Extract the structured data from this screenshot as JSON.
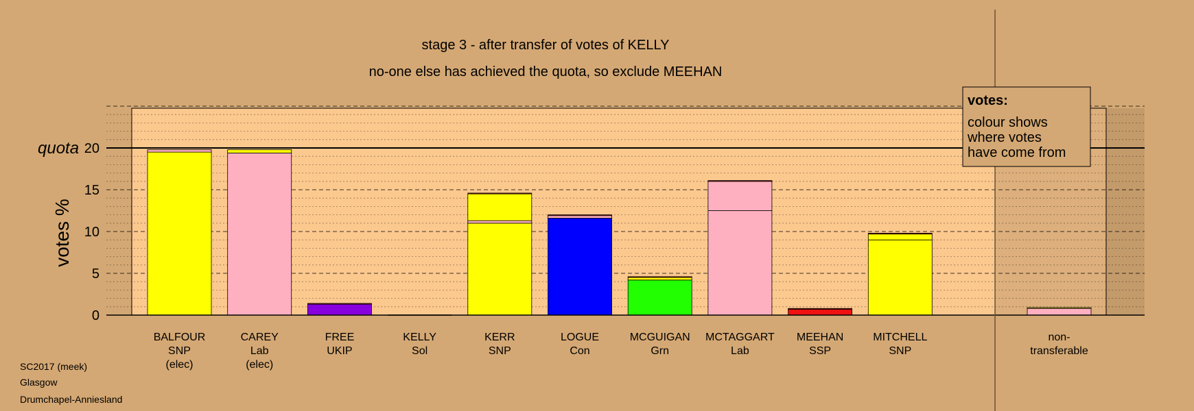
{
  "chart_data": {
    "type": "bar",
    "stacked": true,
    "title": "stage 3 - after transfer of votes of KELLY",
    "subtitle": "no-one else has achieved the quota, so exclude MEEHAN",
    "ylabel": "votes %",
    "quota_label": "quota",
    "quota": 20,
    "ylim": [
      0,
      25
    ],
    "yticks": [
      0,
      5,
      10,
      15,
      20
    ],
    "colors": {
      "snp": "#ffff00",
      "lab": "#ffb0c0",
      "ukip": "#8800dd",
      "sol": "#b22222",
      "con": "#0000ff",
      "grn": "#22ff00",
      "ssp": "#ee1111",
      "plot_bg": "#fbc88e",
      "page_bg": "#d4a874"
    },
    "candidates": [
      {
        "name": "BALFOUR",
        "party": "SNP",
        "status": "(elec)",
        "segments": [
          {
            "party": "snp",
            "value": 19.5
          },
          {
            "party": "lab",
            "value": 0.3
          }
        ]
      },
      {
        "name": "CAREY",
        "party": "Lab",
        "status": "(elec)",
        "segments": [
          {
            "party": "lab",
            "value": 19.4
          },
          {
            "party": "snp",
            "value": 0.4
          }
        ]
      },
      {
        "name": "FREE",
        "party": "UKIP",
        "status": "",
        "segments": [
          {
            "party": "ukip",
            "value": 1.3
          },
          {
            "party": "sol",
            "value": 0.1
          }
        ]
      },
      {
        "name": "KELLY",
        "party": "Sol",
        "status": "",
        "segments": []
      },
      {
        "name": "KERR",
        "party": "SNP",
        "status": "",
        "segments": [
          {
            "party": "snp",
            "value": 11.0
          },
          {
            "party": "lab",
            "value": 0.3
          },
          {
            "party": "snp",
            "value": 3.2
          },
          {
            "party": "sol",
            "value": 0.1
          }
        ]
      },
      {
        "name": "LOGUE",
        "party": "Con",
        "status": "",
        "segments": [
          {
            "party": "con",
            "value": 11.6
          },
          {
            "party": "lab",
            "value": 0.3
          },
          {
            "party": "sol",
            "value": 0.1
          }
        ]
      },
      {
        "name": "MCGUIGAN",
        "party": "Grn",
        "status": "",
        "segments": [
          {
            "party": "grn",
            "value": 4.2
          },
          {
            "party": "snp",
            "value": 0.3
          },
          {
            "party": "sol",
            "value": 0.1
          }
        ]
      },
      {
        "name": "MCTAGGART",
        "party": "Lab",
        "status": "",
        "segments": [
          {
            "party": "lab",
            "value": 12.5
          },
          {
            "party": "lab",
            "value": 3.5
          },
          {
            "party": "sol",
            "value": 0.1
          }
        ]
      },
      {
        "name": "MEEHAN",
        "party": "SSP",
        "status": "",
        "segments": [
          {
            "party": "ssp",
            "value": 0.7
          },
          {
            "party": "sol",
            "value": 0.1
          }
        ]
      },
      {
        "name": "MITCHELL",
        "party": "SNP",
        "status": "",
        "segments": [
          {
            "party": "snp",
            "value": 9.0
          },
          {
            "party": "snp",
            "value": 0.7
          },
          {
            "party": "sol",
            "value": 0.1
          }
        ]
      }
    ],
    "nontransferable": {
      "label_lines": [
        "non-",
        "transferable"
      ],
      "segments": [
        {
          "party": "lab",
          "value": 0.8
        },
        {
          "party": "snp",
          "value": 0.1
        }
      ]
    },
    "legend": {
      "title": "votes:",
      "lines": [
        "colour shows",
        "where votes",
        "have come from"
      ],
      "placement": "top-right"
    }
  },
  "footer": {
    "lines": [
      "SC2017 (meek)",
      "Glasgow",
      "Drumchapel-Anniesland"
    ]
  }
}
